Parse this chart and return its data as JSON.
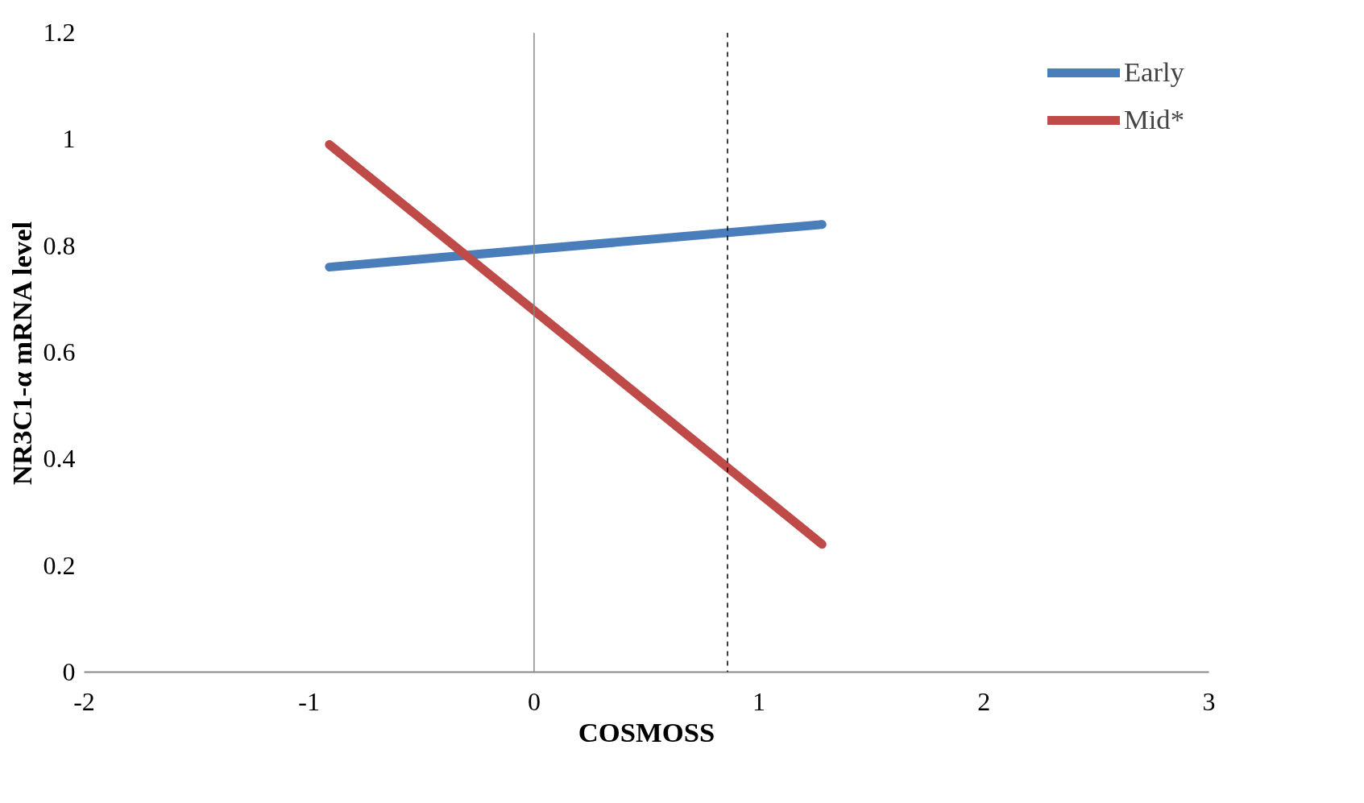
{
  "chart_data": {
    "type": "line",
    "xlabel": "COSMOSS",
    "ylabel": "NR3C1-α mRNA level",
    "x": [
      -0.91,
      1.28
    ],
    "xlim": [
      -2,
      3
    ],
    "ylim": [
      0,
      1.2
    ],
    "xticks": [
      -2,
      -1,
      0,
      1,
      2,
      3
    ],
    "yticks": [
      0,
      0.2,
      0.4,
      0.6,
      0.8,
      1,
      1.2
    ],
    "series": [
      {
        "name": "Early",
        "color": "#4a7ebb",
        "values": [
          0.76,
          0.84
        ]
      },
      {
        "name": "Mid*",
        "color": "#be4b48",
        "values": [
          0.99,
          0.24
        ]
      }
    ],
    "ref_lines": [
      {
        "axis": "x",
        "value": 0,
        "label": null,
        "color": "#888888",
        "line_style": "solid"
      },
      {
        "axis": "x",
        "value": 0.86,
        "label": null,
        "color": "#000000",
        "line_style": "dashed"
      }
    ],
    "grid": false,
    "legend": "top right",
    "line_style": "solid",
    "marker": "none"
  }
}
